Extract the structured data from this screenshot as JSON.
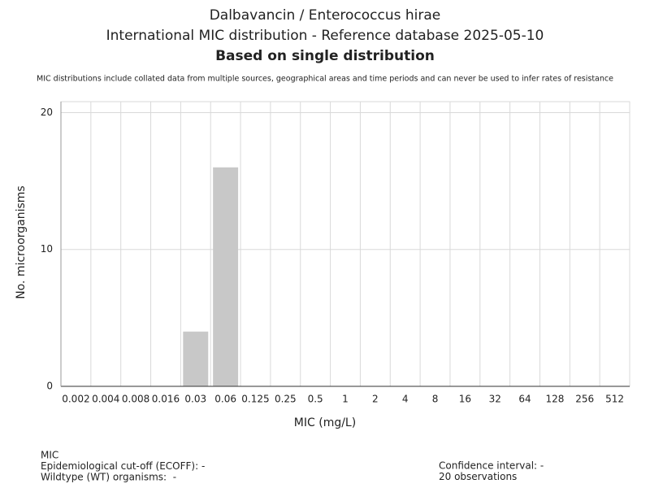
{
  "chart_data": {
    "type": "bar",
    "title": "Dalbavancin / Enterococcus hirae",
    "subtitle": "International MIC distribution - Reference database 2025-05-10",
    "heading": "Based on single distribution",
    "note": "MIC distributions include collated data from multiple sources, geographical areas and time periods and can never be used to infer rates of resistance",
    "x_label": "MIC (mg/L)",
    "y_label": "No. microorganisms",
    "categories": [
      "0.002",
      "0.004",
      "0.008",
      "0.016",
      "0.03",
      "0.06",
      "0.125",
      "0.25",
      "0.5",
      "1",
      "2",
      "4",
      "8",
      "16",
      "32",
      "64",
      "128",
      "256",
      "512"
    ],
    "values": [
      0,
      0,
      0,
      0,
      4,
      16,
      0,
      0,
      0,
      0,
      0,
      0,
      0,
      0,
      0,
      0,
      0,
      0,
      0
    ],
    "color": "#c8c8c8",
    "ylim": [
      0,
      20.8
    ],
    "yticks": [
      0,
      10,
      20
    ],
    "grid": true,
    "footer_left": [
      "MIC",
      "Epidemiological cut-off (ECOFF): -",
      "Wildtype (WT) organisms:  -"
    ],
    "footer_right": [
      "Confidence interval: -",
      "20 observations"
    ]
  }
}
